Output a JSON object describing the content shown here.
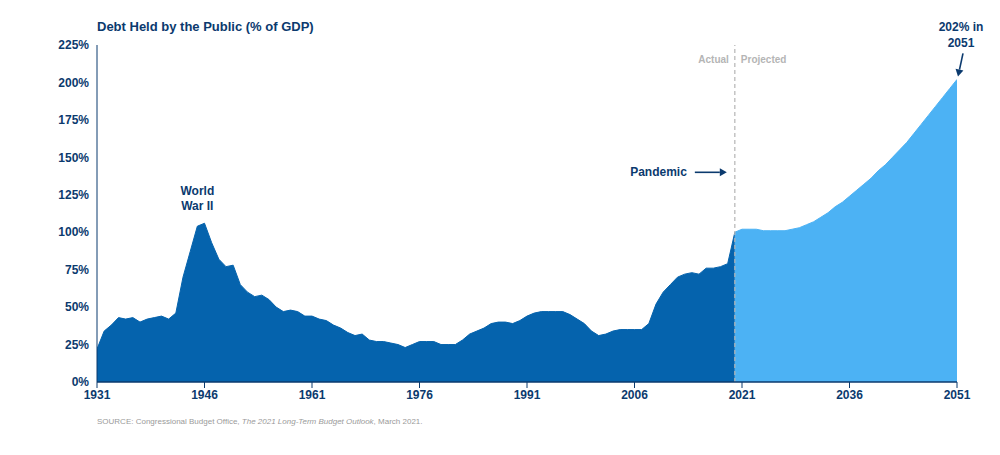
{
  "chart_data": {
    "type": "area",
    "title": "Debt Held by the Public (% of GDP)",
    "source": {
      "text": "SOURCE: Congressional Budget Office, The 2021 Long-Term Budget Outlook, March 2021.",
      "italic": "The 2021 Long-Term Budget Outlook"
    },
    "x": [
      1931,
      1932,
      1933,
      1934,
      1935,
      1936,
      1937,
      1938,
      1939,
      1940,
      1941,
      1942,
      1943,
      1944,
      1945,
      1946,
      1947,
      1948,
      1949,
      1950,
      1951,
      1952,
      1953,
      1954,
      1955,
      1956,
      1957,
      1958,
      1959,
      1960,
      1961,
      1962,
      1963,
      1964,
      1965,
      1966,
      1967,
      1968,
      1969,
      1970,
      1971,
      1972,
      1973,
      1974,
      1975,
      1976,
      1977,
      1978,
      1979,
      1980,
      1981,
      1982,
      1983,
      1984,
      1985,
      1986,
      1987,
      1988,
      1989,
      1990,
      1991,
      1992,
      1993,
      1994,
      1995,
      1996,
      1997,
      1998,
      1999,
      2000,
      2001,
      2002,
      2003,
      2004,
      2005,
      2006,
      2007,
      2008,
      2009,
      2010,
      2011,
      2012,
      2013,
      2014,
      2015,
      2016,
      2017,
      2018,
      2019,
      2020,
      2021,
      2022,
      2023,
      2024,
      2025,
      2026,
      2027,
      2028,
      2029,
      2030,
      2031,
      2032,
      2033,
      2034,
      2035,
      2036,
      2037,
      2038,
      2039,
      2040,
      2041,
      2042,
      2043,
      2044,
      2045,
      2046,
      2047,
      2048,
      2049,
      2050,
      2051
    ],
    "series": [
      {
        "name": "Actual",
        "color": "#0563ad",
        "values": [
          22,
          34,
          38,
          43,
          42,
          43,
          40,
          42,
          43,
          44,
          42,
          46,
          70,
          87,
          104,
          106,
          93,
          82,
          77,
          78,
          65,
          60,
          57,
          58,
          55,
          50,
          47,
          48,
          47,
          44,
          44,
          42,
          41,
          38,
          36,
          33,
          31,
          32,
          28,
          27,
          27,
          26,
          25,
          23,
          25,
          27,
          27,
          27,
          25,
          25,
          25,
          28,
          32,
          34,
          36,
          39,
          40,
          40,
          39,
          41,
          44,
          46,
          47,
          47,
          47,
          47,
          45,
          42,
          39,
          34,
          31,
          32,
          34,
          35,
          35,
          35,
          35,
          39,
          52,
          60,
          65,
          70,
          72,
          73,
          72,
          76,
          76,
          77,
          79,
          100,
          null,
          null,
          null,
          null,
          null,
          null,
          null,
          null,
          null,
          null,
          null,
          null,
          null,
          null,
          null,
          null,
          null,
          null,
          null,
          null,
          null,
          null,
          null,
          null,
          null,
          null,
          null,
          null,
          null,
          null,
          null
        ]
      },
      {
        "name": "Projected",
        "color": "#4cb2f4",
        "values": [
          null,
          null,
          null,
          null,
          null,
          null,
          null,
          null,
          null,
          null,
          null,
          null,
          null,
          null,
          null,
          null,
          null,
          null,
          null,
          null,
          null,
          null,
          null,
          null,
          null,
          null,
          null,
          null,
          null,
          null,
          null,
          null,
          null,
          null,
          null,
          null,
          null,
          null,
          null,
          null,
          null,
          null,
          null,
          null,
          null,
          null,
          null,
          null,
          null,
          null,
          null,
          null,
          null,
          null,
          null,
          null,
          null,
          null,
          null,
          null,
          null,
          null,
          null,
          null,
          null,
          null,
          null,
          null,
          null,
          null,
          null,
          null,
          null,
          null,
          null,
          null,
          null,
          null,
          null,
          null,
          null,
          null,
          null,
          null,
          null,
          null,
          null,
          null,
          null,
          100,
          102,
          102,
          102,
          101,
          101,
          101,
          101,
          102,
          103,
          105,
          107,
          110,
          113,
          117,
          120,
          124,
          128,
          132,
          136,
          141,
          145,
          150,
          155,
          160,
          166,
          172,
          178,
          184,
          190,
          196,
          202
        ]
      }
    ],
    "xlim": [
      1931,
      2051
    ],
    "xticks": [
      1931,
      1946,
      1961,
      1976,
      1991,
      2006,
      2021,
      2036,
      2051
    ],
    "ylim": [
      0,
      225
    ],
    "yticks": [
      {
        "value": 0,
        "label": "0%"
      },
      {
        "value": 25,
        "label": "25%"
      },
      {
        "value": 50,
        "label": "50%"
      },
      {
        "value": 75,
        "label": "75%"
      },
      {
        "value": 100,
        "label": "100%"
      },
      {
        "value": 125,
        "label": "125%"
      },
      {
        "value": 150,
        "label": "150%"
      },
      {
        "value": 175,
        "label": "175%"
      },
      {
        "value": 200,
        "label": "200%"
      },
      {
        "value": 225,
        "label": "225%"
      }
    ],
    "grid": false,
    "annotations": [
      {
        "text": "World War II",
        "x": 1945,
        "y": 106
      },
      {
        "text": "Pandemic",
        "x": 2020,
        "y": 140
      },
      {
        "text": "202% in 2051",
        "x": 2051,
        "y": 202
      }
    ]
  }
}
